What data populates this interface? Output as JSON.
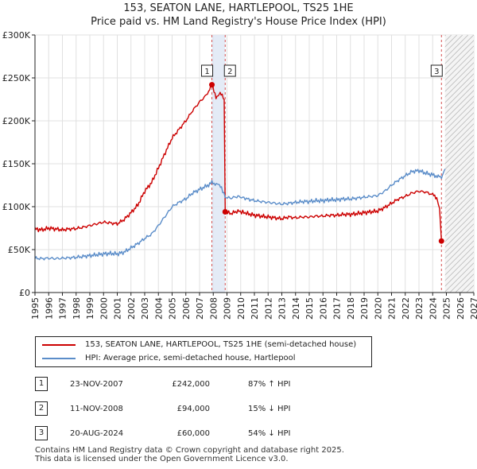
{
  "title": {
    "line1": "153, SEATON LANE, HARTLEPOOL, TS25 1HE",
    "line2": "Price paid vs. HM Land Registry's House Price Index (HPI)"
  },
  "colors": {
    "property": "#cc0000",
    "hpi": "#5b8dc9",
    "highlight": "#dde6f4",
    "grid": "#e0e0e0"
  },
  "legend": [
    {
      "label": "153, SEATON LANE, HARTLEPOOL, TS25 1HE (semi-detached house)",
      "color": "#cc0000"
    },
    {
      "label": "HPI: Average price, semi-detached house, Hartlepool",
      "color": "#5b8dc9"
    }
  ],
  "transactions": [
    {
      "num": "1",
      "date": "23-NOV-2007",
      "price": "£242,000",
      "hpi": "87% ↑ HPI"
    },
    {
      "num": "2",
      "date": "11-NOV-2008",
      "price": "£94,000",
      "hpi": "15% ↓ HPI"
    },
    {
      "num": "3",
      "date": "20-AUG-2024",
      "price": "£60,000",
      "hpi": "54% ↓ HPI"
    }
  ],
  "footer": {
    "line1": "Contains HM Land Registry data © Crown copyright and database right 2025.",
    "line2": "This data is licensed under the Open Government Licence v3.0."
  },
  "chart_data": {
    "type": "line",
    "title": "153, SEATON LANE, HARTLEPOOL, TS25 1HE — Price paid vs. HM Land Registry's House Price Index (HPI)",
    "xlabel": "",
    "ylabel": "",
    "xlim": [
      1995,
      2027
    ],
    "ylim": [
      0,
      300000
    ],
    "x_ticks": [
      "1995",
      "1996",
      "1997",
      "1998",
      "1999",
      "2000",
      "2001",
      "2002",
      "2003",
      "2004",
      "2005",
      "2006",
      "2007",
      "2008",
      "2009",
      "2010",
      "2011",
      "2012",
      "2013",
      "2014",
      "2015",
      "2016",
      "2017",
      "2018",
      "2019",
      "2020",
      "2021",
      "2022",
      "2023",
      "2024",
      "2025",
      "2026",
      "2027"
    ],
    "y_ticks": [
      {
        "value": 0,
        "label": "£0"
      },
      {
        "value": 50000,
        "label": "£50K"
      },
      {
        "value": 100000,
        "label": "£100K"
      },
      {
        "value": 150000,
        "label": "£150K"
      },
      {
        "value": 200000,
        "label": "£200K"
      },
      {
        "value": 250000,
        "label": "£250K"
      },
      {
        "value": 300000,
        "label": "£300K"
      }
    ],
    "grid": true,
    "highlight_range": [
      2007.9,
      2008.87
    ],
    "future_hatch_from": 2024.9,
    "series": [
      {
        "name": "153, SEATON LANE, HARTLEPOOL, TS25 1HE (semi-detached house)",
        "color": "#cc0000",
        "points": [
          [
            1995,
            74000
          ],
          [
            1995.5,
            73000
          ],
          [
            1996,
            75000
          ],
          [
            1996.5,
            74000
          ],
          [
            1997,
            73000
          ],
          [
            1997.5,
            74000
          ],
          [
            1998,
            74500
          ],
          [
            1998.5,
            76000
          ],
          [
            1999,
            78000
          ],
          [
            1999.5,
            80000
          ],
          [
            2000,
            82000
          ],
          [
            2000.5,
            81000
          ],
          [
            2001,
            80000
          ],
          [
            2001.5,
            85000
          ],
          [
            2002,
            93000
          ],
          [
            2002.5,
            102000
          ],
          [
            2003,
            118000
          ],
          [
            2003.5,
            128000
          ],
          [
            2004,
            145000
          ],
          [
            2004.5,
            163000
          ],
          [
            2005,
            180000
          ],
          [
            2005.5,
            190000
          ],
          [
            2006,
            200000
          ],
          [
            2006.5,
            212000
          ],
          [
            2007,
            222000
          ],
          [
            2007.5,
            230000
          ],
          [
            2007.9,
            242000
          ],
          [
            2008.2,
            228000
          ],
          [
            2008.5,
            232000
          ],
          [
            2008.8,
            225000
          ],
          [
            2008.87,
            94000
          ],
          [
            2009.3,
            92000
          ],
          [
            2009.8,
            95000
          ],
          [
            2010.5,
            92000
          ],
          [
            2011,
            90000
          ],
          [
            2011.5,
            89000
          ],
          [
            2012,
            88000
          ],
          [
            2012.5,
            87000
          ],
          [
            2013,
            86000
          ],
          [
            2013.5,
            88000
          ],
          [
            2014,
            87000
          ],
          [
            2014.5,
            88000
          ],
          [
            2015,
            88000
          ],
          [
            2015.5,
            89000
          ],
          [
            2016,
            89000
          ],
          [
            2016.5,
            90000
          ],
          [
            2017,
            90000
          ],
          [
            2017.5,
            91000
          ],
          [
            2018,
            91000
          ],
          [
            2018.5,
            92000
          ],
          [
            2019,
            93000
          ],
          [
            2019.5,
            94000
          ],
          [
            2020,
            95000
          ],
          [
            2020.5,
            99000
          ],
          [
            2021,
            104000
          ],
          [
            2021.5,
            109000
          ],
          [
            2022,
            112000
          ],
          [
            2022.5,
            116000
          ],
          [
            2023,
            118000
          ],
          [
            2023.5,
            117000
          ],
          [
            2024,
            114000
          ],
          [
            2024.3,
            110000
          ],
          [
            2024.5,
            98000
          ],
          [
            2024.64,
            60000
          ]
        ]
      },
      {
        "name": "HPI: Average price, semi-detached house, Hartlepool",
        "color": "#5b8dc9",
        "points": [
          [
            1995,
            40000
          ],
          [
            1995.5,
            39500
          ],
          [
            1996,
            40000
          ],
          [
            1996.5,
            39500
          ],
          [
            1997,
            40000
          ],
          [
            1997.5,
            40500
          ],
          [
            1998,
            41000
          ],
          [
            1998.5,
            42000
          ],
          [
            1999,
            43000
          ],
          [
            1999.5,
            44000
          ],
          [
            2000,
            45000
          ],
          [
            2000.5,
            45500
          ],
          [
            2001,
            45000
          ],
          [
            2001.5,
            47000
          ],
          [
            2002,
            52000
          ],
          [
            2002.5,
            57000
          ],
          [
            2003,
            63000
          ],
          [
            2003.5,
            68000
          ],
          [
            2004,
            78000
          ],
          [
            2004.5,
            89000
          ],
          [
            2005,
            100000
          ],
          [
            2005.5,
            105000
          ],
          [
            2006,
            109000
          ],
          [
            2006.5,
            116000
          ],
          [
            2007,
            120000
          ],
          [
            2007.5,
            124000
          ],
          [
            2007.9,
            128000
          ],
          [
            2008.3,
            126000
          ],
          [
            2008.6,
            122000
          ],
          [
            2008.87,
            111000
          ],
          [
            2009.3,
            110000
          ],
          [
            2009.8,
            112000
          ],
          [
            2010.5,
            109000
          ],
          [
            2011,
            107000
          ],
          [
            2011.5,
            106000
          ],
          [
            2012,
            105000
          ],
          [
            2012.5,
            104000
          ],
          [
            2013,
            103000
          ],
          [
            2013.5,
            104000
          ],
          [
            2014,
            105000
          ],
          [
            2014.5,
            106000
          ],
          [
            2015,
            106000
          ],
          [
            2015.5,
            107000
          ],
          [
            2016,
            107000
          ],
          [
            2016.5,
            108000
          ],
          [
            2017,
            108000
          ],
          [
            2017.5,
            109000
          ],
          [
            2018,
            109000
          ],
          [
            2018.5,
            110000
          ],
          [
            2019,
            111000
          ],
          [
            2019.5,
            112000
          ],
          [
            2020,
            113000
          ],
          [
            2020.5,
            118000
          ],
          [
            2021,
            125000
          ],
          [
            2021.5,
            131000
          ],
          [
            2022,
            136000
          ],
          [
            2022.5,
            141000
          ],
          [
            2023,
            142000
          ],
          [
            2023.5,
            139000
          ],
          [
            2024,
            137000
          ],
          [
            2024.64,
            134000
          ],
          [
            2024.9,
            144000
          ]
        ]
      }
    ],
    "annotations": [
      {
        "label": "1",
        "x": 2007.9,
        "y": 242000
      },
      {
        "label": "2",
        "x": 2008.87,
        "y": 94000
      },
      {
        "label": "3",
        "x": 2024.64,
        "y": 60000
      }
    ]
  }
}
